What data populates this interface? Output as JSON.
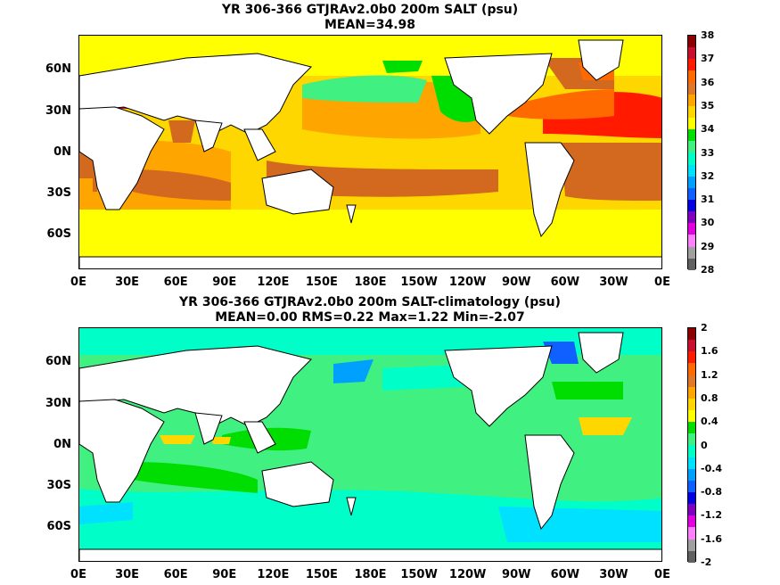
{
  "panels": [
    {
      "title_line1": "YR 306-366 GTJRAv2.0b0 200m SALT (psu)",
      "title_line2": "MEAN=34.98",
      "colorbar_labels": [
        "38",
        "37",
        "36",
        "35",
        "34",
        "33",
        "32",
        "31",
        "30",
        "29",
        "28"
      ],
      "colorbar_colors": [
        "#8b0000",
        "#c8102e",
        "#ff1a00",
        "#ff6a00",
        "#e07828",
        "#ffa500",
        "#ffd700",
        "#ffff00",
        "#00dd00",
        "#40f080",
        "#00ffc8",
        "#00e0ff",
        "#00a0ff",
        "#1060ff",
        "#0000e0",
        "#8000c0",
        "#e000e0",
        "#ff80ff",
        "#a0a0a0",
        "#606060"
      ],
      "ocean_base": "#ffd700",
      "patches": [
        {
          "name": "arctic-high",
          "color": "#ffff00"
        },
        {
          "name": "north-pacific-fresh",
          "color": "#ffa500"
        },
        {
          "name": "bering-fresh",
          "color": "#40f080"
        },
        {
          "name": "north-pacific-green",
          "color": "#00dd00"
        },
        {
          "name": "north-atlantic-salty",
          "color": "#ff6a00"
        },
        {
          "name": "mediterranean-salty",
          "color": "#c8102e"
        },
        {
          "name": "south-pacific-salty",
          "color": "#d2691e"
        },
        {
          "name": "arabian-salty",
          "color": "#d2691e"
        },
        {
          "name": "south-atlantic",
          "color": "#d2691e"
        },
        {
          "name": "southern-ocean",
          "color": "#ffff00"
        }
      ]
    },
    {
      "title_line1": "YR 306-366 GTJRAv2.0b0 200m SALT-climatology (psu)",
      "title_line2": "MEAN=0.00   RMS=0.22   Max=1.22   Min=-2.07",
      "colorbar_labels": [
        "2",
        "1.6",
        "1.2",
        "0.8",
        "0.4",
        "0",
        "-0.4",
        "-0.8",
        "-1.2",
        "-1.6",
        "-2"
      ],
      "colorbar_colors": [
        "#8b0000",
        "#c8102e",
        "#ff1a00",
        "#ff6a00",
        "#e07828",
        "#ffa500",
        "#ffd700",
        "#ffff00",
        "#00dd00",
        "#40f080",
        "#00ffc8",
        "#00e0ff",
        "#00a0ff",
        "#1060ff",
        "#0000e0",
        "#8000c0",
        "#e000e0",
        "#ff80ff",
        "#a0a0a0",
        "#606060"
      ],
      "ocean_base": "#40f080",
      "patches": [
        {
          "name": "southern-ocean-cyan",
          "color": "#00ffc8"
        },
        {
          "name": "arctic-cyan",
          "color": "#00ffc8"
        },
        {
          "name": "equatorial-green",
          "color": "#00dd00"
        },
        {
          "name": "atlantic-yellow",
          "color": "#ffd700"
        },
        {
          "name": "labrador-blue",
          "color": "#1060ff"
        },
        {
          "name": "okhotsk-blue",
          "color": "#00a0ff"
        }
      ]
    }
  ],
  "y_ticks": [
    "60N",
    "30N",
    "0N",
    "30S",
    "60S"
  ],
  "x_ticks": [
    "0E",
    "30E",
    "60E",
    "90E",
    "120E",
    "150E",
    "180E",
    "150W",
    "120W",
    "90W",
    "60W",
    "30W",
    "0E"
  ],
  "land_color": "#ffffff",
  "coast_color": "#000000"
}
